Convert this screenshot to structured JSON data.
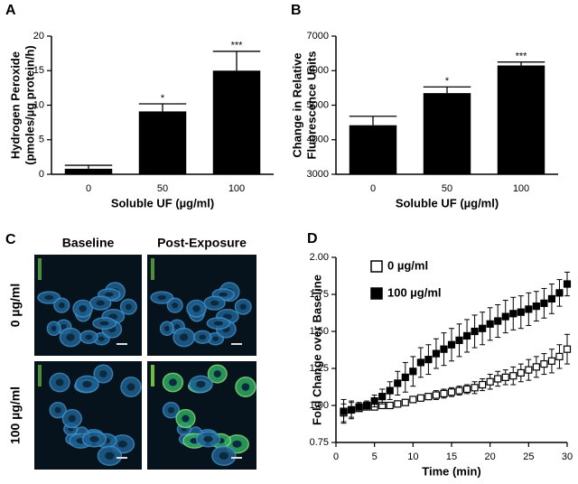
{
  "chart_data": [
    {
      "type": "bar",
      "panel": "A",
      "ylabel": [
        "Hydrogen Peroxide",
        "(pmoles/µg protein/h)"
      ],
      "xlabel": "Soluble UF (µg/ml)",
      "categories": [
        "0",
        "50",
        "100"
      ],
      "values": [
        0.8,
        9.1,
        15.0
      ],
      "errors": [
        0.5,
        1.1,
        2.8
      ],
      "annotations": [
        null,
        "*",
        "***"
      ],
      "color": "#000000",
      "ylim": [
        0,
        20
      ],
      "yticks": [
        0,
        5,
        10,
        15,
        20
      ]
    },
    {
      "type": "bar",
      "panel": "B",
      "ylabel": [
        "Change in Relative",
        "Fluorescence Units"
      ],
      "xlabel": "Soluble UF (µg/ml)",
      "categories": [
        "0",
        "50",
        "100"
      ],
      "values": [
        4420,
        5350,
        6150
      ],
      "errors": [
        260,
        180,
        100
      ],
      "annotations": [
        null,
        "*",
        "***"
      ],
      "color": "#000000",
      "ylim": [
        3000,
        7000
      ],
      "yticks": [
        3000,
        4000,
        5000,
        6000,
        7000
      ]
    },
    {
      "type": "line",
      "panel": "D",
      "ylabel": "Fold Change over Baseline",
      "xlabel": "Time (min)",
      "x": [
        1,
        2,
        3,
        4,
        5,
        6,
        7,
        8,
        9,
        10,
        11,
        12,
        13,
        14,
        15,
        16,
        17,
        18,
        19,
        20,
        21,
        22,
        23,
        24,
        25,
        26,
        27,
        28,
        29,
        30
      ],
      "series": [
        {
          "name": "0 µg/ml",
          "color": "#000000",
          "fill": "#ffffff",
          "values": [
            0.95,
            0.97,
            0.98,
            0.99,
            0.99,
            1.0,
            1.0,
            1.01,
            1.02,
            1.04,
            1.05,
            1.06,
            1.07,
            1.08,
            1.09,
            1.1,
            1.11,
            1.12,
            1.14,
            1.16,
            1.18,
            1.19,
            1.2,
            1.22,
            1.24,
            1.26,
            1.28,
            1.3,
            1.33,
            1.38
          ],
          "errors": [
            0.06,
            0.05,
            0.02,
            0.02,
            0.02,
            0.02,
            0.02,
            0.02,
            0.02,
            0.02,
            0.02,
            0.02,
            0.03,
            0.03,
            0.03,
            0.03,
            0.03,
            0.04,
            0.04,
            0.05,
            0.05,
            0.05,
            0.06,
            0.06,
            0.07,
            0.07,
            0.07,
            0.08,
            0.08,
            0.1
          ]
        },
        {
          "name": "100 µg/ml",
          "color": "#000000",
          "fill": "#000000",
          "values": [
            0.96,
            0.97,
            0.99,
            1.0,
            1.03,
            1.06,
            1.1,
            1.15,
            1.19,
            1.23,
            1.29,
            1.31,
            1.35,
            1.38,
            1.41,
            1.44,
            1.47,
            1.5,
            1.52,
            1.55,
            1.57,
            1.6,
            1.62,
            1.63,
            1.65,
            1.67,
            1.69,
            1.72,
            1.76,
            1.82
          ],
          "errors": [
            0.08,
            0.06,
            0.03,
            0.03,
            0.04,
            0.05,
            0.06,
            0.08,
            0.1,
            0.1,
            0.1,
            0.1,
            0.1,
            0.11,
            0.11,
            0.11,
            0.11,
            0.11,
            0.11,
            0.11,
            0.11,
            0.11,
            0.11,
            0.11,
            0.11,
            0.1,
            0.1,
            0.1,
            0.09,
            0.08
          ]
        }
      ],
      "xlim": [
        0,
        30
      ],
      "xticks": [
        0,
        5,
        10,
        15,
        20,
        25,
        30
      ],
      "ylim": [
        0.75,
        2.0
      ],
      "yticks": [
        {
          "value": 0.75,
          "label": "0.75"
        },
        {
          "value": 1.0,
          "label": "1.00"
        },
        {
          "value": 1.25,
          "label": "1.25"
        },
        {
          "value": 1.5,
          "label": "1.50"
        },
        {
          "value": 1.75,
          "label": "1.75"
        },
        {
          "value": 2.0,
          "label": "2.00"
        }
      ],
      "legend": "top-left"
    }
  ],
  "panel_c": {
    "panel": "C",
    "columns": [
      "Baseline",
      "Post-Exposure"
    ],
    "rows": [
      "0 µg/ml",
      "100 µg/ml"
    ]
  }
}
